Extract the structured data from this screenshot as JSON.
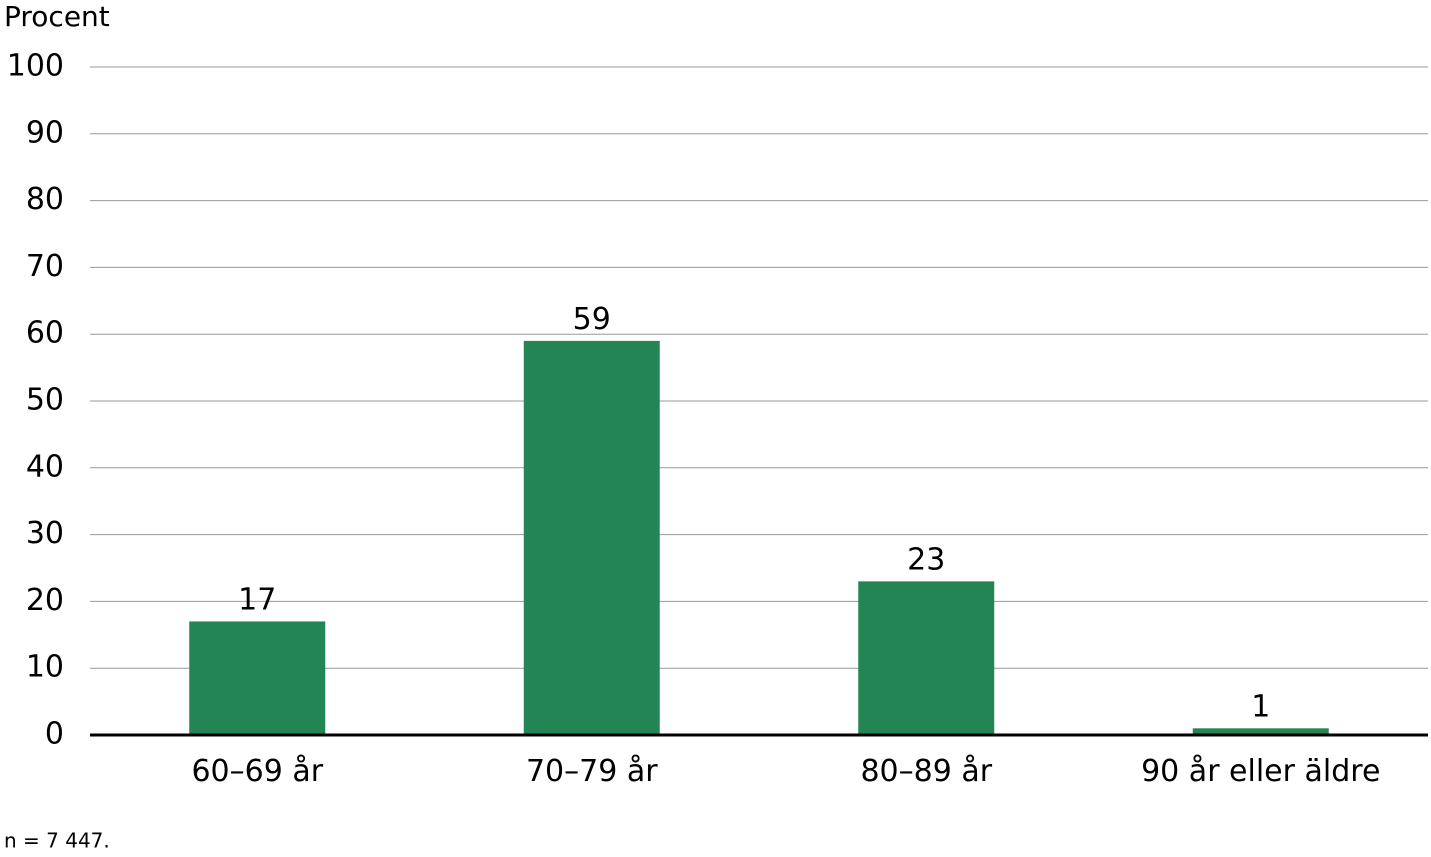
{
  "chart_data": {
    "type": "bar",
    "y_label": "Procent",
    "note": "n = 7 447.",
    "categories": [
      "60–69 år",
      "70–79 år",
      "80–89 år",
      "90 år eller äldre"
    ],
    "values": [
      17,
      59,
      23,
      1
    ],
    "color": "#238553",
    "ylim": [
      0,
      100
    ],
    "yticks": [
      0,
      10,
      20,
      30,
      40,
      50,
      60,
      70,
      80,
      90,
      100
    ],
    "grid": true
  }
}
